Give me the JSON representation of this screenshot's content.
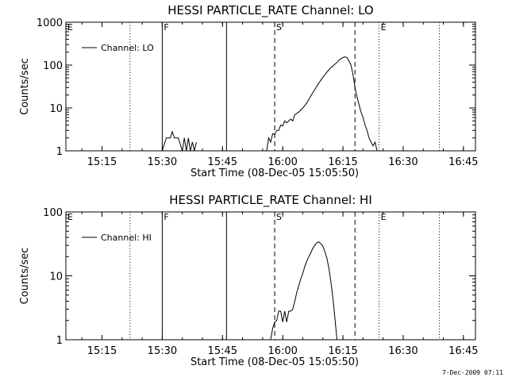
{
  "footer": {
    "timestamp": "7-Dec-2009 07:11"
  },
  "chart_data": [
    {
      "type": "line",
      "title": "HESSI PARTICLE_RATE Channel: LO",
      "xlabel": "Start Time (08-Dec-05 15:05:50)",
      "ylabel": "Counts/sec",
      "yscale": "log",
      "xlim": [
        "15:06",
        "16:48"
      ],
      "ylim": [
        1,
        1000
      ],
      "xticks": [
        "15:15",
        "15:30",
        "15:45",
        "16:00",
        "16:15",
        "16:30",
        "16:45"
      ],
      "yticks": [
        "1",
        "10",
        "100",
        "1000"
      ],
      "grid": false,
      "legend": {
        "position": "top-left",
        "entries": [
          "Channel: LO"
        ]
      },
      "markers": [
        {
          "x": "15:06",
          "style": "dashed",
          "label": "E"
        },
        {
          "x": "15:22",
          "style": "dotted",
          "label": ""
        },
        {
          "x": "15:30",
          "style": "solid",
          "label": "F"
        },
        {
          "x": "15:46",
          "style": "solid",
          "label": ""
        },
        {
          "x": "15:58",
          "style": "dashed",
          "label": "S"
        },
        {
          "x": "16:18",
          "style": "dashed",
          "label": ""
        },
        {
          "x": "16:24",
          "style": "dotted",
          "label": "E"
        },
        {
          "x": "16:39",
          "style": "dotted",
          "label": ""
        }
      ],
      "series": [
        {
          "color": "#000000",
          "segments": [
            {
              "x": [
                "15:30.0",
                "15:31.0",
                "15:32.0",
                "15:32.5",
                "15:33.0",
                "15:34.0",
                "15:35.0",
                "15:35.5",
                "15:36.0",
                "15:36.5",
                "15:37.0",
                "15:37.5",
                "15:38.0",
                "15:38.5"
              ],
              "y": [
                1,
                2,
                2,
                2.8,
                2,
                2,
                1,
                2,
                1,
                2,
                1,
                1.6,
                1,
                1.6
              ]
            },
            {
              "x": [
                "15:56.0",
                "15:56.5",
                "15:57.0",
                "15:57.5",
                "15:58.0",
                "15:58.5",
                "15:59.0",
                "15:59.5",
                "16:00.0",
                "16:00.5",
                "16:01.0",
                "16:01.5",
                "16:02.0",
                "16:02.5",
                "16:03.0",
                "16:04.0",
                "16:05.0",
                "16:06.0",
                "16:07.0",
                "16:08.0",
                "16:09.0",
                "16:10.0",
                "16:11.0",
                "16:12.0",
                "16:12.5",
                "16:13.0",
                "16:13.5",
                "16:14.0",
                "16:14.5",
                "16:15.0",
                "16:15.5",
                "16:16.0",
                "16:16.5",
                "16:17.0",
                "16:17.5",
                "16:18.0",
                "16:18.5",
                "16:19.0",
                "16:19.5",
                "16:20.0",
                "16:20.5",
                "16:21.0",
                "16:21.5",
                "16:22.0",
                "16:22.5",
                "16:23.0",
                "16:23.5"
              ],
              "y": [
                1,
                2,
                1.6,
                2.5,
                2.4,
                3,
                3,
                4,
                3.8,
                5,
                4.5,
                5,
                5.5,
                5,
                7,
                8,
                10,
                13,
                19,
                27,
                38,
                52,
                68,
                88,
                95,
                105,
                115,
                130,
                140,
                150,
                155,
                150,
                125,
                100,
                60,
                30,
                18,
                12,
                8,
                6,
                4,
                3,
                2,
                1.6,
                1.3,
                1.6,
                1
              ]
            }
          ]
        }
      ]
    },
    {
      "type": "line",
      "title": "HESSI PARTICLE_RATE Channel: HI",
      "xlabel": "Start Time (08-Dec-05 15:05:50)",
      "ylabel": "Counts/sec",
      "yscale": "log",
      "xlim": [
        "15:06",
        "16:48"
      ],
      "ylim": [
        1,
        100
      ],
      "xticks": [
        "15:15",
        "15:30",
        "15:45",
        "16:00",
        "16:15",
        "16:30",
        "16:45"
      ],
      "yticks": [
        "1",
        "10",
        "100"
      ],
      "grid": false,
      "legend": {
        "position": "top-left",
        "entries": [
          "Channel: HI"
        ]
      },
      "markers": [
        {
          "x": "15:06",
          "style": "dashed",
          "label": "E"
        },
        {
          "x": "15:22",
          "style": "dotted",
          "label": ""
        },
        {
          "x": "15:30",
          "style": "solid",
          "label": "F"
        },
        {
          "x": "15:46",
          "style": "solid",
          "label": ""
        },
        {
          "x": "15:58",
          "style": "dashed",
          "label": "S"
        },
        {
          "x": "16:18",
          "style": "dashed",
          "label": ""
        },
        {
          "x": "16:24",
          "style": "dotted",
          "label": "E"
        },
        {
          "x": "16:39",
          "style": "dotted",
          "label": ""
        }
      ],
      "series": [
        {
          "color": "#000000",
          "segments": [
            {
              "x": [
                "15:57.0",
                "15:57.5",
                "15:58.0",
                "15:58.5",
                "15:59.0",
                "15:59.5",
                "16:00.0",
                "16:00.5",
                "16:01.0",
                "16:01.5",
                "16:02.0",
                "16:02.5",
                "16:03.0",
                "16:03.5",
                "16:04.0",
                "16:04.5",
                "16:05.0",
                "16:05.5",
                "16:06.0",
                "16:06.5",
                "16:07.0",
                "16:07.5",
                "16:08.0",
                "16:08.5",
                "16:09.0",
                "16:09.5",
                "16:10.0",
                "16:10.5",
                "16:11.0",
                "16:11.5",
                "16:12.0",
                "16:12.5",
                "16:13.0",
                "16:13.5"
              ],
              "y": [
                1,
                1.5,
                1.9,
                2,
                2.8,
                2.8,
                1.9,
                2.8,
                1.9,
                2.8,
                2.8,
                3,
                4,
                5.5,
                7,
                9,
                11,
                14,
                17,
                20,
                23,
                27,
                30,
                33,
                34,
                32,
                29,
                24,
                19,
                13,
                8,
                4.5,
                2.2,
                1
              ]
            }
          ]
        }
      ]
    }
  ]
}
